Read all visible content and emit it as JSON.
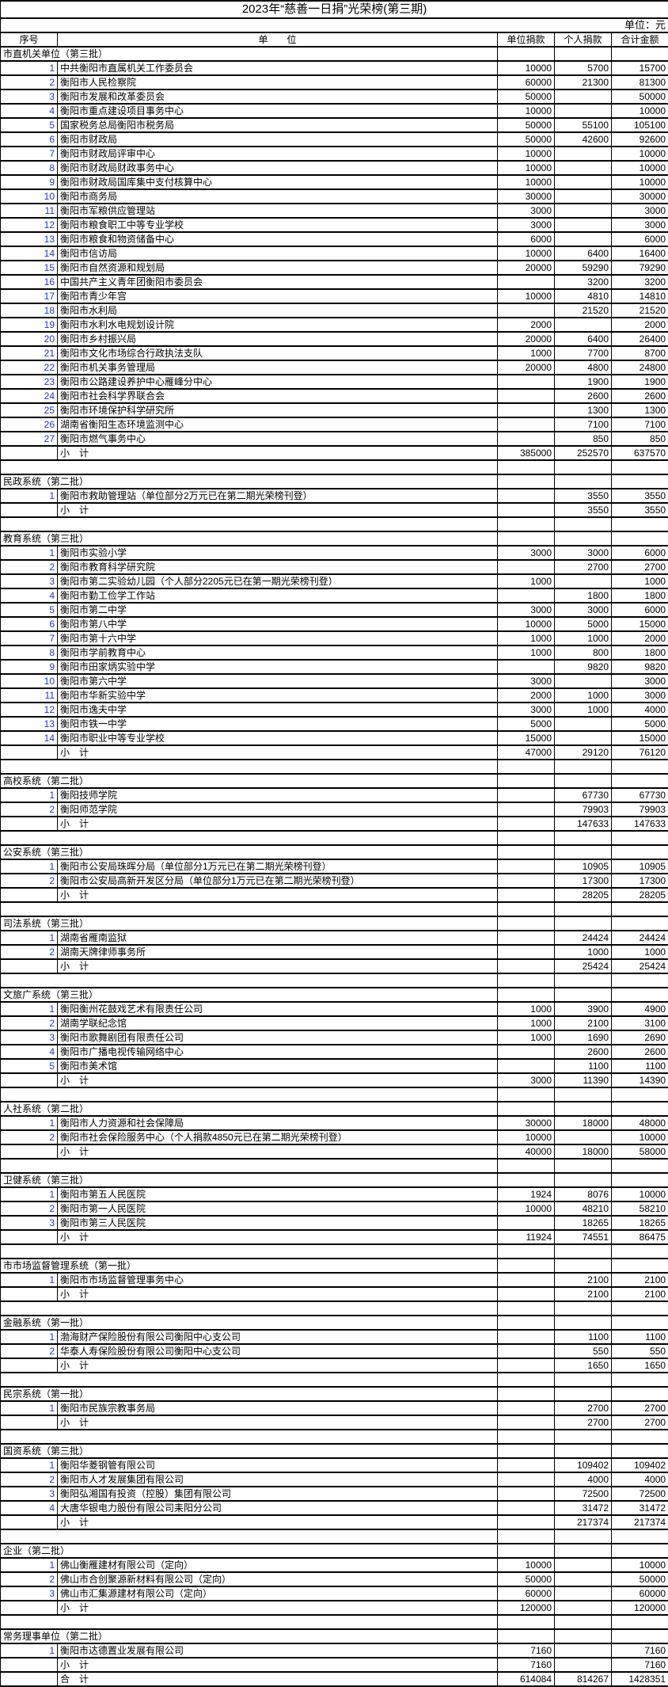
{
  "title": "2023年“慈善一日捐”光荣榜(第三期)",
  "unit_note": "单位：元",
  "colors": {
    "index_number": "#2233cc",
    "border": "#000000",
    "background": "#ffffff"
  },
  "table": {
    "headers": {
      "index": "序号",
      "unit": "单　　位",
      "unit_donation": "单位捐款",
      "personal_donation": "个人捐款",
      "total": "合计金额"
    },
    "subtotal_label": "小　计",
    "grand_total_label": "合　计",
    "sections": [
      {
        "name": "市直机关单位（第三批）",
        "rows": [
          [
            1,
            "中共衡阳市直属机关工作委员会",
            10000,
            5700,
            15700
          ],
          [
            2,
            "衡阳市人民检察院",
            60000,
            21300,
            81300
          ],
          [
            3,
            "衡阳市发展和改革委员会",
            50000,
            null,
            50000
          ],
          [
            4,
            "衡阳市重点建设项目事务中心",
            10000,
            null,
            10000
          ],
          [
            5,
            "国家税务总局衡阳市税务局",
            50000,
            55100,
            105100
          ],
          [
            6,
            "衡阳市财政局",
            50000,
            42600,
            92600
          ],
          [
            7,
            "衡阳市财政局评审中心",
            10000,
            null,
            10000
          ],
          [
            8,
            "衡阳市财政局财政事务中心",
            10000,
            null,
            10000
          ],
          [
            9,
            "衡阳市财政局国库集中支付核算中心",
            10000,
            null,
            10000
          ],
          [
            10,
            "衡阳市商务局",
            30000,
            null,
            30000
          ],
          [
            11,
            "衡阳市军粮供应管理站",
            3000,
            null,
            3000
          ],
          [
            12,
            "衡阳市粮食职工中等专业学校",
            3000,
            null,
            3000
          ],
          [
            13,
            "衡阳市粮食和物资储备中心",
            6000,
            null,
            6000
          ],
          [
            14,
            "衡阳市信访局",
            10000,
            6400,
            16400
          ],
          [
            15,
            "衡阳市自然资源和规划局",
            20000,
            59290,
            79290
          ],
          [
            16,
            "中国共产主义青年团衡阳市委员会",
            null,
            3200,
            3200
          ],
          [
            17,
            "衡阳市青少年宫",
            10000,
            4810,
            14810
          ],
          [
            18,
            "衡阳市水利局",
            null,
            21520,
            21520
          ],
          [
            19,
            "衡阳市水利水电规划设计院",
            2000,
            null,
            2000
          ],
          [
            20,
            "衡阳市乡村振兴局",
            20000,
            6400,
            26400
          ],
          [
            21,
            "衡阳市文化市场综合行政执法支队",
            1000,
            7700,
            8700
          ],
          [
            22,
            "衡阳市机关事务管理局",
            20000,
            4800,
            24800
          ],
          [
            23,
            "衡阳市公路建设养护中心雁峰分中心",
            null,
            1900,
            1900
          ],
          [
            24,
            "衡阳市社会科学界联合会",
            null,
            2600,
            2600
          ],
          [
            25,
            "衡阳市环境保护科学研究所",
            null,
            1300,
            1300
          ],
          [
            26,
            "湖南省衡阳生态环境监测中心",
            null,
            7100,
            7100
          ],
          [
            27,
            "衡阳市燃气事务中心",
            null,
            850,
            850
          ]
        ],
        "subtotal": [
          385000,
          252570,
          637570
        ]
      },
      {
        "name": "民政系统（第二批）",
        "rows": [
          [
            1,
            "衡阳市救助管理站（单位部分2万元已在第二期光荣榜刊登）",
            null,
            3550,
            3550
          ]
        ],
        "subtotal": [
          null,
          3550,
          3550
        ]
      },
      {
        "name": "教育系统（第三批）",
        "rows": [
          [
            1,
            "衡阳市实验小学",
            3000,
            3000,
            6000
          ],
          [
            2,
            "衡阳市教育科学研究院",
            null,
            2700,
            2700
          ],
          [
            3,
            "衡阳市第二实验幼儿园（个人部分2205元已在第一期光荣榜刊登）",
            1000,
            null,
            1000
          ],
          [
            4,
            "衡阳市勤工俭学工作站",
            null,
            1800,
            1800
          ],
          [
            5,
            "衡阳市第二中学",
            3000,
            3000,
            6000
          ],
          [
            6,
            "衡阳市第八中学",
            10000,
            5000,
            15000
          ],
          [
            7,
            "衡阳市第十六中学",
            1000,
            1000,
            2000
          ],
          [
            8,
            "衡阳市学前教育中心",
            1000,
            800,
            1800
          ],
          [
            9,
            "衡阳市田家炳实验中学",
            null,
            9820,
            9820
          ],
          [
            10,
            "衡阳市第六中学",
            3000,
            null,
            3000
          ],
          [
            11,
            "衡阳市华新实验中学",
            2000,
            1000,
            3000
          ],
          [
            12,
            "衡阳市逸夫中学",
            3000,
            1000,
            4000
          ],
          [
            13,
            "衡阳市铁一中学",
            5000,
            null,
            5000
          ],
          [
            14,
            "衡阳市职业中等专业学校",
            15000,
            null,
            15000
          ]
        ],
        "subtotal": [
          47000,
          29120,
          76120
        ]
      },
      {
        "name": "高校系统（第二批）",
        "rows": [
          [
            1,
            "衡阳技师学院",
            null,
            67730,
            67730
          ],
          [
            2,
            "衡阳师范学院",
            null,
            79903,
            79903
          ]
        ],
        "subtotal": [
          null,
          147633,
          147633
        ]
      },
      {
        "name": "公安系统（第三批）",
        "rows": [
          [
            1,
            "衡阳市公安局珠晖分局（单位部分1万元已在第二期光荣榜刊登）",
            null,
            10905,
            10905
          ],
          [
            2,
            "衡阳市公安局高新开发区分局（单位部分1万元已在第二期光荣榜刊登）",
            null,
            17300,
            17300
          ]
        ],
        "subtotal": [
          null,
          28205,
          28205
        ]
      },
      {
        "name": "司法系统（第三批）",
        "rows": [
          [
            1,
            "湖南省雁南监狱",
            null,
            24424,
            24424
          ],
          [
            2,
            "湖南天牌律师事务所",
            null,
            1000,
            1000
          ]
        ],
        "subtotal": [
          null,
          25424,
          25424
        ]
      },
      {
        "name": "文旅广系统（第三批）",
        "rows": [
          [
            1,
            "衡阳衡州花鼓戏艺术有限责任公司",
            1000,
            3900,
            4900
          ],
          [
            2,
            "湖南学联纪念馆",
            1000,
            2100,
            3100
          ],
          [
            3,
            "衡阳市歌舞剧团有限责任公司",
            1000,
            1690,
            2690
          ],
          [
            4,
            "衡阳市广播电视传输网络中心",
            null,
            2600,
            2600
          ],
          [
            5,
            "衡阳市美术馆",
            null,
            1100,
            1100
          ]
        ],
        "subtotal": [
          3000,
          11390,
          14390
        ]
      },
      {
        "name": "人社系统（第二批）",
        "rows": [
          [
            1,
            "衡阳市人力资源和社会保障局",
            30000,
            18000,
            48000
          ],
          [
            2,
            "衡阳市社会保险服务中心（个人捐款4850元已在第二期光荣榜刊登）",
            10000,
            null,
            10000
          ]
        ],
        "subtotal": [
          40000,
          18000,
          58000
        ]
      },
      {
        "name": "卫健系统（第三批）",
        "rows": [
          [
            1,
            "衡阳市第五人民医院",
            1924,
            8076,
            10000
          ],
          [
            2,
            "衡阳市第一人民医院",
            10000,
            48210,
            58210
          ],
          [
            3,
            "衡阳市第三人民医院",
            null,
            18265,
            18265
          ]
        ],
        "subtotal": [
          11924,
          74551,
          86475
        ]
      },
      {
        "name": "市市场监督管理系统（第一批）",
        "rows": [
          [
            1,
            "衡阳市市场监督管理事务中心",
            null,
            2100,
            2100
          ]
        ],
        "subtotal": [
          null,
          2100,
          2100
        ]
      },
      {
        "name": "金融系统（第一批）",
        "rows": [
          [
            1,
            "渤海财产保险股份有限公司衡阳中心支公司",
            null,
            1100,
            1100
          ],
          [
            2,
            "华泰人寿保险股份有限公司衡阳中心支公司",
            null,
            550,
            550
          ]
        ],
        "subtotal": [
          null,
          1650,
          1650
        ]
      },
      {
        "name": "民宗系统（第一批）",
        "rows": [
          [
            1,
            "衡阳市民族宗教事务局",
            null,
            2700,
            2700
          ]
        ],
        "subtotal": [
          null,
          2700,
          2700
        ]
      },
      {
        "name": "国资系统（第三批）",
        "rows": [
          [
            1,
            "衡阳华菱钢管有限公司",
            null,
            109402,
            109402
          ],
          [
            2,
            "衡阳市人才发展集团有限公司",
            null,
            4000,
            4000
          ],
          [
            3,
            "衡阳弘湘国有投资（控股）集团有限公司",
            null,
            72500,
            72500
          ],
          [
            4,
            "大唐华银电力股份有限公司耒阳分公司",
            null,
            31472,
            31472
          ]
        ],
        "subtotal": [
          null,
          217374,
          217374
        ]
      },
      {
        "name": "企业（第二批）",
        "rows": [
          [
            1,
            "佛山衡雁建材有限公司（定向）",
            10000,
            null,
            10000
          ],
          [
            2,
            "佛山市合创聚源新材料有限公司（定向）",
            50000,
            null,
            50000
          ],
          [
            3,
            "佛山市汇集源建材有限公司（定向）",
            60000,
            null,
            60000
          ]
        ],
        "subtotal": [
          120000,
          null,
          120000
        ]
      },
      {
        "name": "常务理事单位（第二批）",
        "rows": [
          [
            1,
            "衡阳市达德置业发展有限公司",
            7160,
            null,
            7160
          ]
        ],
        "subtotal": [
          7160,
          null,
          7160
        ]
      }
    ],
    "grand_total": [
      614084,
      814267,
      1428351
    ]
  }
}
